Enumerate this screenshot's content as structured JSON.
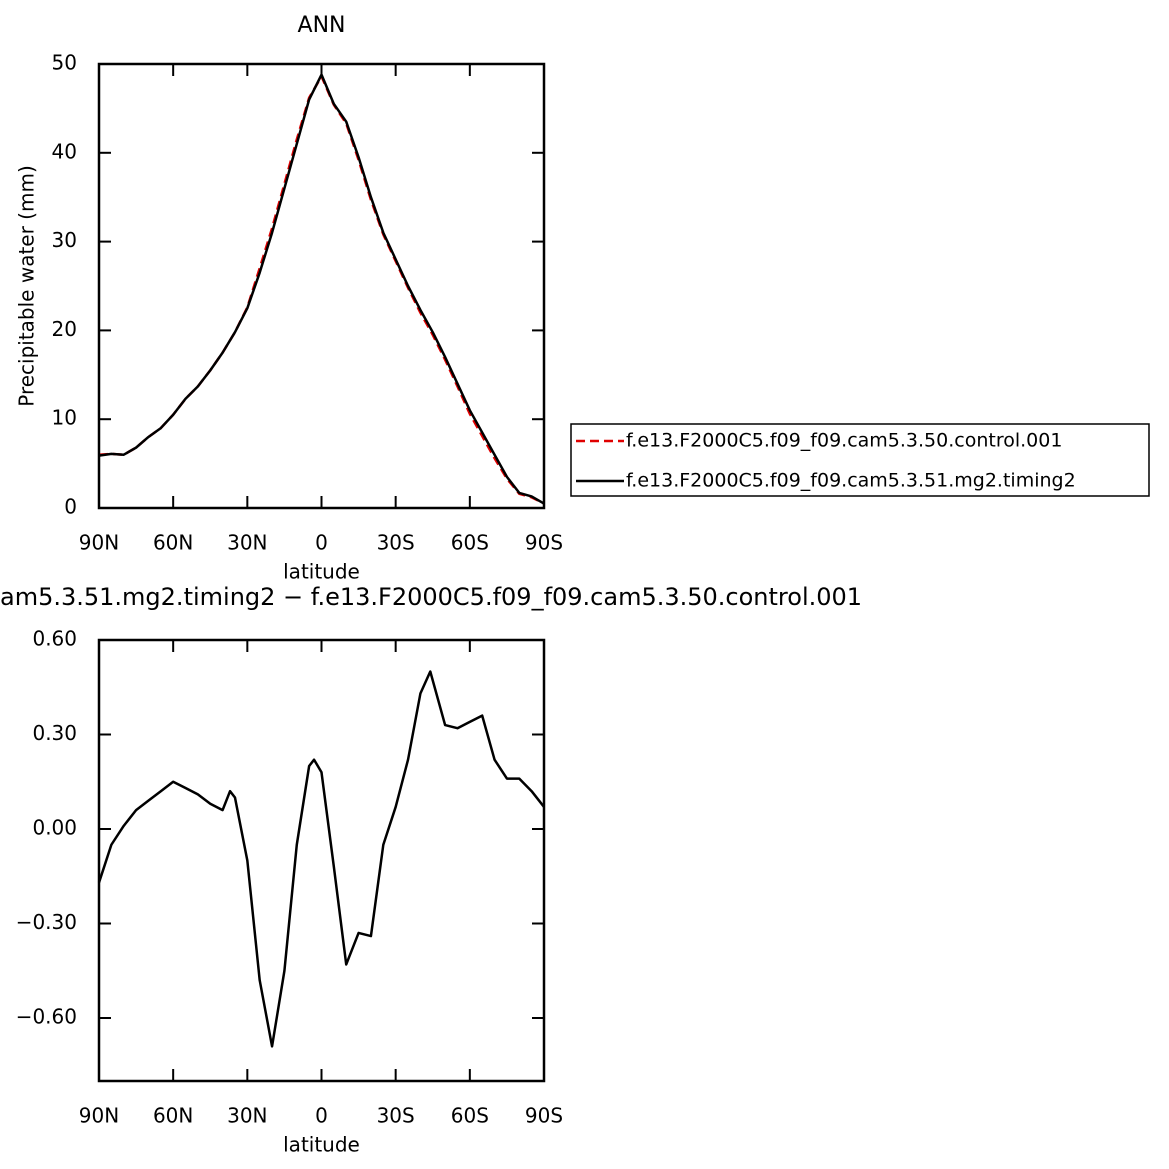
{
  "chart_data": [
    {
      "type": "line",
      "title": "ANN",
      "y_label": "Precipitable water (mm)",
      "x_label": "latitude",
      "x": [
        90,
        85,
        80,
        75,
        70,
        65,
        60,
        55,
        50,
        45,
        40,
        35,
        30,
        25,
        20,
        15,
        10,
        5,
        0,
        -5,
        -10,
        -15,
        -20,
        -25,
        -30,
        -35,
        -40,
        -45,
        -50,
        -55,
        -60,
        -65,
        -70,
        -75,
        -80,
        -85,
        -90
      ],
      "series": [
        {
          "name": "f.e13.F2000C5.f09_f09.cam5.3.50.control.001",
          "color": "#e00000",
          "dash": "dashed",
          "values": [
            6.0,
            6.1,
            6.0,
            6.8,
            8.0,
            9.0,
            10.5,
            12.3,
            13.7,
            15.5,
            17.5,
            19.8,
            22.6,
            27.0,
            31.5,
            36.5,
            41.5,
            46.2,
            48.6,
            45.4,
            43.3,
            39.2,
            34.7,
            30.8,
            27.8,
            24.8,
            22.0,
            19.5,
            16.7,
            13.7,
            10.6,
            8.1,
            5.6,
            3.3,
            1.6,
            1.2,
            0.5
          ]
        },
        {
          "name": "f.e13.F2000C5.f09_f09.cam5.3.51.mg2.timing2",
          "color": "#000000",
          "dash": "solid",
          "values": [
            5.9,
            6.1,
            6.0,
            6.8,
            8.0,
            9.0,
            10.5,
            12.3,
            13.7,
            15.5,
            17.5,
            19.8,
            22.5,
            26.5,
            31.0,
            36.0,
            41.0,
            46.0,
            48.8,
            45.5,
            43.5,
            39.5,
            35.0,
            31.0,
            28.0,
            25.0,
            22.3,
            19.8,
            17.0,
            14.0,
            11.0,
            8.5,
            6.0,
            3.5,
            1.7,
            1.3,
            0.5
          ]
        }
      ],
      "xlim": [
        90,
        -90
      ],
      "xticks": [
        {
          "value": 90,
          "label": "90N"
        },
        {
          "value": 60,
          "label": "60N"
        },
        {
          "value": 30,
          "label": "30N"
        },
        0,
        {
          "value": -30,
          "label": "30S"
        },
        {
          "value": -60,
          "label": "60S"
        },
        {
          "value": -90,
          "label": "90S"
        }
      ],
      "ylim": [
        0,
        50
      ],
      "yticks": [
        0,
        10,
        20,
        30,
        40,
        50
      ],
      "legend": "right"
    },
    {
      "type": "line",
      "title": "am5.3.51.mg2.timing2 − f.e13.F2000C5.f09_f09.cam5.3.50.control.001",
      "x_label": "latitude",
      "x": [
        90,
        85,
        80,
        75,
        70,
        65,
        60,
        55,
        50,
        45,
        40,
        37,
        35,
        30,
        25,
        20,
        15,
        10,
        5,
        3,
        0,
        -5,
        -10,
        -15,
        -20,
        -25,
        -30,
        -35,
        -40,
        -44,
        -50,
        -55,
        -60,
        -65,
        -70,
        -75,
        -80,
        -85,
        -90
      ],
      "series": [
        {
          "color": "#000000",
          "dash": "solid",
          "values": [
            -0.17,
            -0.05,
            0.01,
            0.06,
            0.09,
            0.12,
            0.15,
            0.13,
            0.11,
            0.08,
            0.06,
            0.12,
            0.1,
            -0.1,
            -0.48,
            -0.69,
            -0.45,
            -0.05,
            0.2,
            0.22,
            0.18,
            -0.12,
            -0.43,
            -0.33,
            -0.34,
            -0.05,
            0.07,
            0.22,
            0.43,
            0.5,
            0.33,
            0.32,
            0.34,
            0.36,
            0.22,
            0.16,
            0.16,
            0.12,
            0.07
          ]
        }
      ],
      "xlim": [
        90,
        -90
      ],
      "xticks": [
        {
          "value": 90,
          "label": "90N"
        },
        {
          "value": 60,
          "label": "60N"
        },
        {
          "value": 30,
          "label": "30N"
        },
        0,
        {
          "value": -30,
          "label": "30S"
        },
        {
          "value": -60,
          "label": "60S"
        },
        {
          "value": -90,
          "label": "90S"
        }
      ],
      "ylim": [
        -0.8,
        0.6
      ],
      "yticks": [
        {
          "value": 0.6,
          "label": "0.60"
        },
        {
          "value": 0.3,
          "label": "0.30"
        },
        {
          "value": 0,
          "label": "0.00"
        },
        {
          "value": -0.3,
          "label": "−0.30"
        },
        {
          "value": -0.6,
          "label": "−0.60"
        }
      ]
    }
  ]
}
